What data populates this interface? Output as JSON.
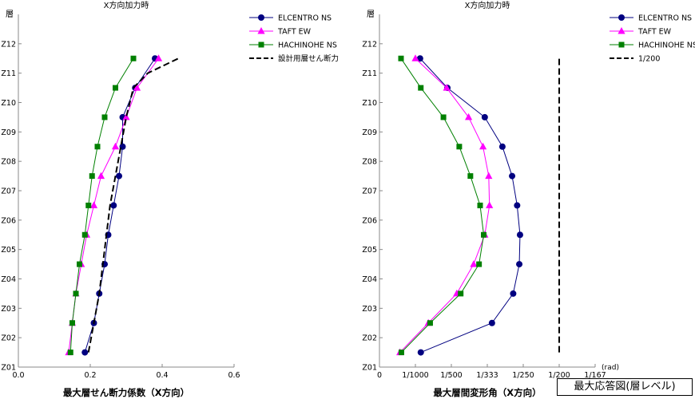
{
  "caption": "最大応答図(層レベル)",
  "story_labels": [
    "Z01",
    "Z02",
    "Z03",
    "Z04",
    "Z05",
    "Z06",
    "Z07",
    "Z08",
    "Z09",
    "Z10",
    "Z11",
    "Z12"
  ],
  "colors": {
    "elcentro": "#000080",
    "taft": "#ff00ff",
    "hachinohe": "#008000",
    "design": "#000000"
  },
  "chart_data": [
    {
      "type": "line",
      "title": "X方向加力時",
      "xlabel": "最大層せん断力係数（X方向）",
      "ylabel": "層",
      "xlim": [
        0,
        0.6
      ],
      "x_ticks": [
        0.0,
        0.2,
        0.4,
        0.6
      ],
      "x_tick_labels": [
        "0.0",
        "0.2",
        "0.4",
        "0.6"
      ],
      "ylim": [
        1,
        13
      ],
      "y_categories": [
        "Z01",
        "Z02",
        "Z03",
        "Z04",
        "Z05",
        "Z06",
        "Z07",
        "Z08",
        "Z09",
        "Z10",
        "Z11",
        "Z12"
      ],
      "grid": false,
      "legend": "top-right",
      "series": [
        {
          "name": "ELCENTRO NS",
          "marker": "circle",
          "color_key": "elcentro",
          "points": [
            [
              0.185,
              1.5
            ],
            [
              0.21,
              2.5
            ],
            [
              0.225,
              3.5
            ],
            [
              0.24,
              4.5
            ],
            [
              0.25,
              5.5
            ],
            [
              0.265,
              6.5
            ],
            [
              0.28,
              7.5
            ],
            [
              0.29,
              8.5
            ],
            [
              0.29,
              9.5
            ],
            [
              0.325,
              10.5
            ],
            [
              0.38,
              11.5
            ]
          ]
        },
        {
          "name": "TAFT EW",
          "marker": "triangle",
          "color_key": "taft",
          "points": [
            [
              0.14,
              1.5
            ],
            [
              0.15,
              2.5
            ],
            [
              0.16,
              3.5
            ],
            [
              0.175,
              4.5
            ],
            [
              0.19,
              5.5
            ],
            [
              0.21,
              6.5
            ],
            [
              0.23,
              7.5
            ],
            [
              0.27,
              8.5
            ],
            [
              0.3,
              9.5
            ],
            [
              0.33,
              10.5
            ],
            [
              0.39,
              11.5
            ]
          ]
        },
        {
          "name": "HACHINOHE NS",
          "marker": "square",
          "color_key": "hachinohe",
          "points": [
            [
              0.145,
              1.5
            ],
            [
              0.15,
              2.5
            ],
            [
              0.16,
              3.5
            ],
            [
              0.17,
              4.5
            ],
            [
              0.185,
              5.5
            ],
            [
              0.195,
              6.5
            ],
            [
              0.205,
              7.5
            ],
            [
              0.22,
              8.5
            ],
            [
              0.24,
              9.5
            ],
            [
              0.27,
              10.5
            ],
            [
              0.32,
              11.5
            ]
          ]
        },
        {
          "name": "設計用層せん断力",
          "marker": "none",
          "dash": true,
          "color_key": "design",
          "points": [
            [
              0.195,
              1.5
            ],
            [
              0.21,
              2.5
            ],
            [
              0.225,
              3.5
            ],
            [
              0.235,
              4.5
            ],
            [
              0.245,
              5.5
            ],
            [
              0.255,
              6.5
            ],
            [
              0.27,
              7.5
            ],
            [
              0.285,
              8.5
            ],
            [
              0.3,
              9.5
            ],
            [
              0.32,
              10.5
            ],
            [
              0.36,
              11
            ],
            [
              0.445,
              11.5
            ]
          ]
        }
      ]
    },
    {
      "type": "line",
      "title": "X方向加力時",
      "xlabel": "最大層間変形角（X方向）",
      "ylabel": "層",
      "x_unit": "(rad)",
      "xlim": [
        0,
        0.006
      ],
      "x_ticks": [
        0,
        0.001,
        0.002,
        0.003,
        0.004,
        0.005,
        0.006
      ],
      "x_tick_labels": [
        "0",
        "1/1000",
        "1/500",
        "1/333",
        "1/250",
        "1/200",
        "1/167"
      ],
      "ylim": [
        1,
        13
      ],
      "y_categories": [
        "Z01",
        "Z02",
        "Z03",
        "Z04",
        "Z05",
        "Z06",
        "Z07",
        "Z08",
        "Z09",
        "Z10",
        "Z11",
        "Z12"
      ],
      "grid": false,
      "legend": "top-right",
      "series": [
        {
          "name": "ELCENTRO NS",
          "marker": "circle",
          "color_key": "elcentro",
          "points": [
            [
              0.00115,
              1.5
            ],
            [
              0.00313,
              2.5
            ],
            [
              0.00372,
              3.5
            ],
            [
              0.00389,
              4.5
            ],
            [
              0.00391,
              5.5
            ],
            [
              0.00383,
              6.5
            ],
            [
              0.00369,
              7.5
            ],
            [
              0.00342,
              8.5
            ],
            [
              0.00293,
              9.5
            ],
            [
              0.00189,
              10.5
            ],
            [
              0.00113,
              11.5
            ]
          ]
        },
        {
          "name": "TAFT EW",
          "marker": "triangle",
          "color_key": "taft",
          "points": [
            [
              0.00057,
              1.5
            ],
            [
              0.00136,
              2.5
            ],
            [
              0.00215,
              3.5
            ],
            [
              0.00262,
              4.5
            ],
            [
              0.00293,
              5.5
            ],
            [
              0.00306,
              6.5
            ],
            [
              0.00304,
              7.5
            ],
            [
              0.00288,
              8.5
            ],
            [
              0.00248,
              9.5
            ],
            [
              0.00187,
              10.5
            ],
            [
              0.001,
              11.5
            ]
          ]
        },
        {
          "name": "HACHINOHE NS",
          "marker": "square",
          "color_key": "hachinohe",
          "points": [
            [
              0.00061,
              1.5
            ],
            [
              0.00141,
              2.5
            ],
            [
              0.00226,
              3.5
            ],
            [
              0.00277,
              4.5
            ],
            [
              0.0029,
              5.5
            ],
            [
              0.0028,
              6.5
            ],
            [
              0.00253,
              7.5
            ],
            [
              0.00222,
              8.5
            ],
            [
              0.00178,
              9.5
            ],
            [
              0.00115,
              10.5
            ],
            [
              0.0006,
              11.5
            ]
          ]
        },
        {
          "name": "1/200",
          "marker": "none",
          "dash": true,
          "color_key": "design",
          "points": [
            [
              0.005,
              1.5
            ],
            [
              0.005,
              11.5
            ]
          ]
        }
      ]
    }
  ]
}
